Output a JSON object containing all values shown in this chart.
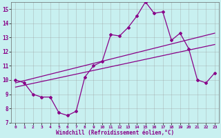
{
  "xlabel": "Windchill (Refroidissement éolien,°C)",
  "xlim": [
    -0.5,
    23.5
  ],
  "ylim": [
    7,
    15.5
  ],
  "ytick_min": 7,
  "ytick_max": 15,
  "bg_color": "#c8f0f0",
  "grid_color": "#999999",
  "line_color": "#880088",
  "line1_x": [
    0,
    1,
    2,
    3,
    4,
    5,
    6,
    7,
    8,
    9,
    10,
    11,
    12,
    13,
    14,
    15,
    16,
    17,
    18,
    19,
    20,
    21,
    22,
    23
  ],
  "line1_y": [
    10.0,
    9.8,
    9.0,
    8.8,
    8.8,
    7.7,
    7.5,
    7.8,
    10.2,
    11.0,
    11.3,
    13.2,
    13.1,
    13.7,
    14.5,
    15.5,
    14.7,
    14.8,
    12.8,
    13.3,
    12.2,
    10.0,
    9.8,
    10.5
  ],
  "line2_x": [
    0,
    23
  ],
  "line2_y": [
    9.5,
    12.5
  ],
  "line3_x": [
    0,
    23
  ],
  "line3_y": [
    9.8,
    13.3
  ]
}
